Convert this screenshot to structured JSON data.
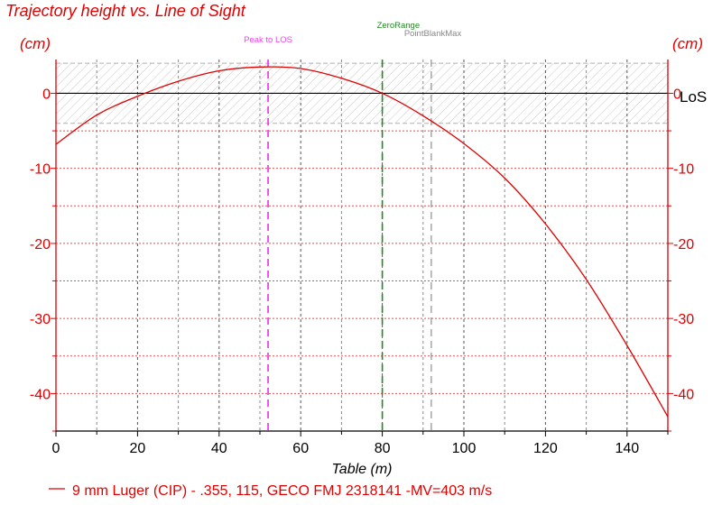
{
  "chart_data": {
    "type": "line",
    "title": "Trajectory height vs. Line of Sight",
    "y_unit_left": "(cm)",
    "y_unit_right": "(cm)",
    "xlabel": "Table (m)",
    "xlim": [
      0,
      150
    ],
    "ylim": [
      -45,
      4.5
    ],
    "x_ticks": [
      0,
      20,
      40,
      60,
      80,
      100,
      120,
      140
    ],
    "y_ticks": [
      0,
      -10,
      -20,
      -30,
      -40
    ],
    "x_minor_step": 10,
    "y_minor_step": 5,
    "los_label": "LoS",
    "point_blank_band": [
      -4,
      4
    ],
    "markers": [
      {
        "label": "Peak to LOS",
        "x": 52,
        "color": "#ee44ee"
      },
      {
        "label": "ZeroRange",
        "x": 80,
        "color": "#228822"
      },
      {
        "label": "PointBlankMax",
        "x": 92,
        "color": "#888888"
      }
    ],
    "series": [
      {
        "name": "9 mm Luger (CIP) - .355, 115, GECO FMJ 2318141 -MV=403 m/s",
        "color": "#e00000",
        "x": [
          0,
          10,
          20,
          30,
          40,
          50,
          60,
          70,
          80,
          90,
          100,
          110,
          120,
          130,
          140,
          150
        ],
        "y": [
          -6.8,
          -2.9,
          -0.4,
          1.6,
          3.0,
          3.5,
          3.3,
          2.0,
          0.0,
          -3.0,
          -6.7,
          -11.3,
          -17.4,
          -24.8,
          -33.6,
          -43.1
        ]
      }
    ]
  }
}
